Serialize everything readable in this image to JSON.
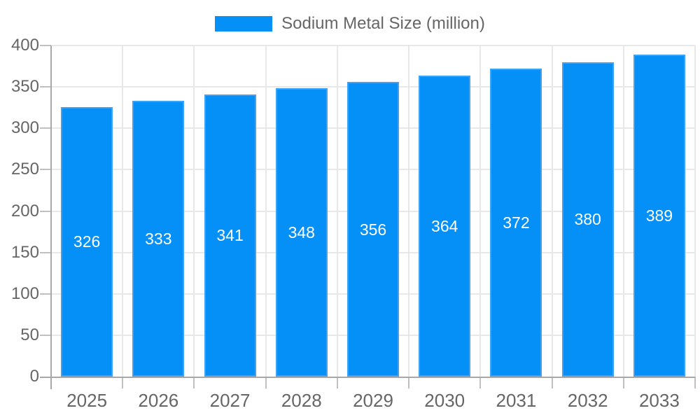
{
  "chart_data": {
    "type": "bar",
    "title": "Sodium Metal Size (million)",
    "legend_label": "Sodium Metal Size (million)",
    "legend_position": "top",
    "categories": [
      "2025",
      "2026",
      "2027",
      "2028",
      "2029",
      "2030",
      "2031",
      "2032",
      "2033"
    ],
    "values": [
      326,
      333,
      341,
      348,
      356,
      364,
      372,
      380,
      389
    ],
    "xlabel": "",
    "ylabel": "",
    "ylim": [
      0,
      400
    ],
    "ytick_step": 50,
    "ytick_labels": [
      "0",
      "50",
      "100",
      "150",
      "200",
      "250",
      "300",
      "350",
      "400"
    ],
    "grid": true,
    "value_labels_position": "inside-center"
  },
  "colors": {
    "bar_fill": "#0590f8",
    "bar_border": "#3fa2f5",
    "grid_line": "#e8e8e8",
    "axis_line": "#a8a8a8",
    "tick_line": "#c0c0c0",
    "axis_label_text": "#666666",
    "value_label_text": "#ffffff",
    "legend_text": "#666666",
    "background": "#ffffff"
  }
}
